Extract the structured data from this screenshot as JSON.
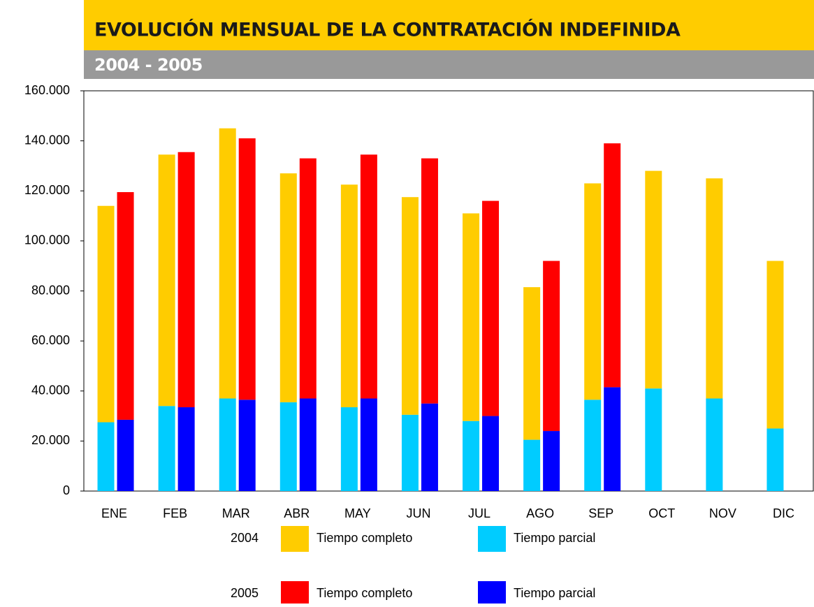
{
  "chart_data": {
    "type": "bar",
    "title": "EVOLUCIÓN MENSUAL DE LA CONTRATACIÓN INDEFINIDA",
    "subtitle": "2004 - 2005",
    "categories": [
      "ENE",
      "FEB",
      "MAR",
      "ABR",
      "MAY",
      "JUN",
      "JUL",
      "AGO",
      "SEP",
      "OCT",
      "NOV",
      "DIC"
    ],
    "groups": [
      {
        "name": "2004",
        "series": [
          {
            "name": "Tiempo completo",
            "color": "#FFCC00",
            "values": [
              86500,
              100500,
              108000,
              91500,
              89000,
              87000,
              83000,
              61000,
              86500,
              87000,
              88000,
              67000
            ]
          },
          {
            "name": "Tiempo parcial",
            "color": "#00CCFF",
            "values": [
              27500,
              34000,
              37000,
              35500,
              33500,
              30500,
              28000,
              20500,
              36500,
              41000,
              37000,
              25000
            ]
          }
        ]
      },
      {
        "name": "2005",
        "series": [
          {
            "name": "Tiempo completo",
            "color": "#FF0000",
            "values": [
              91000,
              102000,
              104500,
              96000,
              97500,
              98000,
              86000,
              68000,
              97500,
              null,
              null,
              null
            ]
          },
          {
            "name": "Tiempo parcial",
            "color": "#0000FF",
            "values": [
              28500,
              33500,
              36500,
              37000,
              37000,
              35000,
              30000,
              24000,
              41500,
              null,
              null,
              null
            ]
          }
        ]
      }
    ],
    "ylim": [
      0,
      160000
    ],
    "yticks": [
      0,
      {
        "value": 20000,
        "label": "20.000"
      },
      {
        "value": 40000,
        "label": "40.000"
      },
      {
        "value": 60000,
        "label": "60.000"
      },
      {
        "value": 80000,
        "label": "80.000"
      },
      {
        "value": 100000,
        "label": "100.000"
      },
      {
        "value": 120000,
        "label": "120.000"
      },
      {
        "value": 140000,
        "label": "140.000"
      },
      {
        "value": 160000,
        "label": "160.000"
      }
    ],
    "grid": false
  }
}
